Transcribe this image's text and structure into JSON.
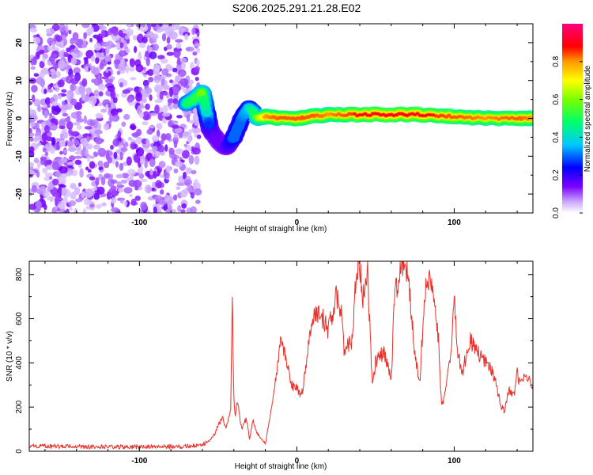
{
  "title": "S206.2025.291.21.28.E02",
  "chart_data": [
    {
      "type": "heatmap",
      "title": "S206.2025.291.21.28.E02",
      "xlabel": "Height of straight line (km)",
      "ylabel": "Frequency (Hz)",
      "xlim": [
        -170,
        150
      ],
      "ylim": [
        -25,
        25
      ],
      "xticks": [
        -100,
        0,
        100
      ],
      "yticks": [
        -20,
        -10,
        0,
        10,
        20
      ],
      "noise_region_x": [
        -170,
        -65
      ],
      "signal_track": {
        "x": [
          -70,
          -65,
          -60,
          -57,
          -55,
          -50,
          -45,
          -40,
          -35,
          -30,
          -25,
          -20,
          -10,
          0,
          10,
          20,
          40,
          60,
          80,
          100,
          120,
          140,
          150
        ],
        "freq_hz": [
          4,
          5,
          7,
          1,
          -3,
          -6,
          -8,
          -5,
          0,
          3,
          0,
          0.5,
          0,
          0,
          0.5,
          1,
          1,
          1,
          1,
          0.5,
          0,
          0,
          0
        ],
        "amplitude": [
          0.5,
          0.55,
          0.6,
          0.4,
          0.2,
          0.15,
          0.15,
          0.3,
          0.3,
          0.4,
          0.6,
          0.8,
          0.85,
          0.85,
          0.85,
          0.8,
          0.9,
          0.92,
          0.9,
          0.85,
          0.8,
          0.85,
          0.8
        ]
      },
      "colorbar": {
        "label": "Normalized spectral amplitude",
        "range": [
          0,
          1
        ],
        "ticks": [
          "0.0",
          "0.2",
          "0.4",
          "0.6",
          "0.8"
        ],
        "tick_values": [
          0,
          0.2,
          0.4,
          0.6,
          0.8
        ]
      }
    },
    {
      "type": "line",
      "xlabel": "Height of straight line (km)",
      "ylabel": "SNR (10 * v/v)",
      "xlim": [
        -170,
        150
      ],
      "ylim": [
        0,
        860
      ],
      "xticks": [
        -100,
        0,
        100
      ],
      "yticks": [
        0,
        200,
        400,
        600,
        800
      ],
      "color": "#e8312a",
      "series": [
        {
          "name": "SNR",
          "x": [
            -170,
            -150,
            -130,
            -110,
            -90,
            -70,
            -60,
            -55,
            -52,
            -50,
            -47,
            -45,
            -42,
            -41,
            -40,
            -39,
            -38,
            -35,
            -32,
            -30,
            -28,
            -25,
            -20,
            -15,
            -13,
            -10,
            -8,
            -5,
            -3,
            0,
            3,
            5,
            10,
            15,
            20,
            25,
            28,
            30,
            35,
            38,
            40,
            42,
            45,
            48,
            50,
            55,
            58,
            60,
            62,
            65,
            68,
            70,
            72,
            75,
            78,
            80,
            82,
            85,
            88,
            90,
            92,
            95,
            98,
            100,
            102,
            105,
            110,
            115,
            120,
            125,
            130,
            132,
            135,
            138,
            140,
            142,
            145,
            148,
            150
          ],
          "y": [
            25,
            22,
            20,
            20,
            20,
            22,
            30,
            50,
            80,
            120,
            150,
            100,
            200,
            700,
            250,
            150,
            230,
            100,
            150,
            50,
            140,
            80,
            30,
            250,
            350,
            550,
            450,
            350,
            300,
            280,
            250,
            350,
            600,
            620,
            550,
            700,
            650,
            450,
            500,
            820,
            850,
            700,
            800,
            300,
            400,
            450,
            380,
            330,
            700,
            800,
            850,
            820,
            700,
            450,
            300,
            550,
            750,
            800,
            650,
            500,
            200,
            300,
            450,
            700,
            450,
            350,
            500,
            450,
            400,
            350,
            200,
            180,
            280,
            250,
            350,
            300,
            350,
            320,
            300
          ]
        }
      ]
    }
  ]
}
